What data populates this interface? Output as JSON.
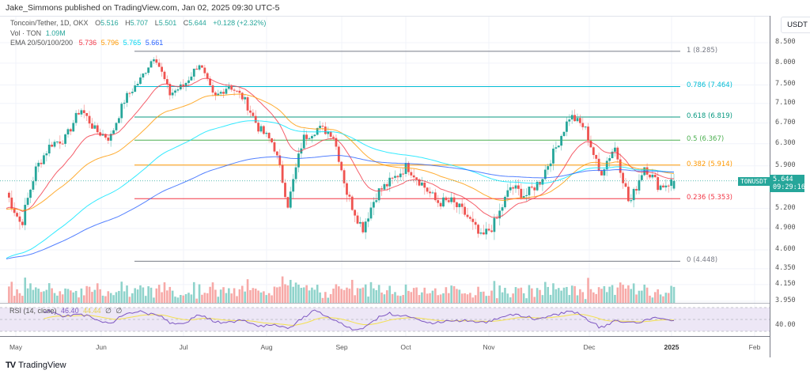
{
  "publisher_line": "Jake_Simmons published on TradingView.com, Jan 02, 2025 09:30 UTC-5",
  "legend": {
    "symbol_desc": "Toncoin/Tether, 1D, OKX",
    "open_label": "O",
    "open": "5.516",
    "high_label": "H",
    "high": "5.707",
    "low_label": "L",
    "low": "5.501",
    "close_label": "C",
    "close": "5.644",
    "change": "+0.128 (+2.32%)",
    "vol_label": "Vol · TON",
    "vol_value": "1.09M",
    "ema_label": "EMA 20/50/100/200",
    "ema20": "5.736",
    "ema50": "5.796",
    "ema100": "5.765",
    "ema200": "5.661"
  },
  "rsi_legend": {
    "label": "RSI (14, close)",
    "rsi": "46.40",
    "rsi_ma": "44.44",
    "na1": "∅",
    "na2": "∅"
  },
  "price_axis": {
    "unit": "USDT",
    "labels": [
      "8.500",
      "8.000",
      "7.500",
      "7.100",
      "6.700",
      "6.300",
      "5.900",
      "5.200",
      "4.900",
      "4.600",
      "4.350",
      "4.150",
      "3.950"
    ],
    "rsi_label": "40.00"
  },
  "last_price": {
    "symbol": "TONUSDT",
    "price": "5.644",
    "countdown": "09:29:16"
  },
  "time_axis": {
    "labels": [
      "May",
      "Jun",
      "Jul",
      "Aug",
      "Sep",
      "Oct",
      "Nov",
      "Dec",
      "2025",
      "Feb"
    ]
  },
  "footer": {
    "brand": "TradingView",
    "logo": "TV"
  },
  "colors": {
    "up": "#26a69a",
    "down": "#ef5350",
    "vol_up": "#8fd3cb",
    "vol_down": "#f7a9a7",
    "ema20": "#f23645",
    "ema50": "#ff9800",
    "ema100": "#00e5ff",
    "ema200": "#2962ff",
    "rsi": "#7e57c2",
    "rsi_ma": "#f4e04d",
    "rsi_band": "#ede7f6"
  },
  "chart_data": {
    "type": "candlestick",
    "title": "Toncoin/Tether, 1D, OKX",
    "symbol": "TONUSDT",
    "ylabel": "USDT",
    "yscale": "log",
    "ylim": [
      3.95,
      8.7
    ],
    "grid": true,
    "x_ticks": [
      "May",
      "Jun",
      "Jul",
      "Aug",
      "Sep",
      "Oct",
      "Nov",
      "Dec",
      "2025",
      "Feb"
    ],
    "y_ticks": [
      8.5,
      8.0,
      7.5,
      7.1,
      6.7,
      6.3,
      5.9,
      5.2,
      4.9,
      4.6,
      4.35,
      4.15,
      3.95
    ],
    "ohlc_last": {
      "open": 5.516,
      "high": 5.707,
      "low": 5.501,
      "close": 5.644,
      "change": 0.128,
      "change_pct": 2.32
    },
    "volume_last": "1.09M",
    "fibonacci_retracement": [
      {
        "level": "1",
        "price": 8.285,
        "color": "#787b86"
      },
      {
        "level": "0.786",
        "price": 7.464,
        "color": "#00bcd4"
      },
      {
        "level": "0.618",
        "price": 6.819,
        "color": "#089981"
      },
      {
        "level": "0.5",
        "price": 6.367,
        "color": "#4caf50"
      },
      {
        "level": "0.382",
        "price": 5.914,
        "color": "#ff9800"
      },
      {
        "level": "0.236",
        "price": 5.353,
        "color": "#f23645"
      },
      {
        "level": "0",
        "price": 4.448,
        "color": "#787b86"
      }
    ],
    "ema_last": {
      "ema20": 5.736,
      "ema50": 5.796,
      "ema100": 5.765,
      "ema200": 5.661
    },
    "rsi": {
      "period": 14,
      "value": 46.4,
      "ma": 44.44,
      "band": [
        30,
        70
      ],
      "mid_label": 40.0
    },
    "close_path_approx": [
      {
        "date": "late Apr",
        "close": 5.45
      },
      {
        "date": "May 1",
        "close": 4.95
      },
      {
        "date": "May 5",
        "close": 5.85
      },
      {
        "date": "May 10",
        "close": 6.3
      },
      {
        "date": "May 14",
        "close": 6.4
      },
      {
        "date": "May 20",
        "close": 7.0
      },
      {
        "date": "May 25",
        "close": 6.55
      },
      {
        "date": "May 30",
        "close": 6.4
      },
      {
        "date": "Jun 3",
        "close": 7.2
      },
      {
        "date": "Jun 8",
        "close": 7.6
      },
      {
        "date": "Jun 13",
        "close": 8.2
      },
      {
        "date": "Jun 18",
        "close": 7.3
      },
      {
        "date": "Jun 25",
        "close": 7.5
      },
      {
        "date": "Jun 30",
        "close": 8.0
      },
      {
        "date": "Jul 5",
        "close": 7.2
      },
      {
        "date": "Jul 12",
        "close": 7.5
      },
      {
        "date": "Jul 20",
        "close": 7.2
      },
      {
        "date": "Jul 28",
        "close": 6.6
      },
      {
        "date": "Aug 3",
        "close": 6.3
      },
      {
        "date": "Aug 5",
        "close": 5.25
      },
      {
        "date": "Aug 10",
        "close": 6.4
      },
      {
        "date": "Aug 20",
        "close": 6.6
      },
      {
        "date": "Aug 25",
        "close": 6.5
      },
      {
        "date": "Aug 28",
        "close": 5.4
      },
      {
        "date": "Sep 5",
        "close": 4.9
      },
      {
        "date": "Sep 8",
        "close": 5.45
      },
      {
        "date": "Sep 15",
        "close": 5.65
      },
      {
        "date": "Sep 25",
        "close": 5.9
      },
      {
        "date": "Sep 30",
        "close": 5.6
      },
      {
        "date": "Oct 5",
        "close": 5.3
      },
      {
        "date": "Oct 15",
        "close": 5.3
      },
      {
        "date": "Oct 25",
        "close": 5.1
      },
      {
        "date": "Nov 3",
        "close": 4.75
      },
      {
        "date": "Nov 10",
        "close": 5.0
      },
      {
        "date": "Nov 15",
        "close": 5.55
      },
      {
        "date": "Nov 20",
        "close": 5.4
      },
      {
        "date": "Nov 25",
        "close": 5.65
      },
      {
        "date": "Nov 30",
        "close": 6.2
      },
      {
        "date": "Dec 3",
        "close": 6.85
      },
      {
        "date": "Dec 8",
        "close": 6.6
      },
      {
        "date": "Dec 10",
        "close": 5.75
      },
      {
        "date": "Dec 15",
        "close": 6.25
      },
      {
        "date": "Dec 20",
        "close": 5.25
      },
      {
        "date": "Dec 25",
        "close": 5.9
      },
      {
        "date": "Dec 30",
        "close": 5.55
      },
      {
        "date": "Jan 2",
        "close": 5.644
      }
    ]
  }
}
